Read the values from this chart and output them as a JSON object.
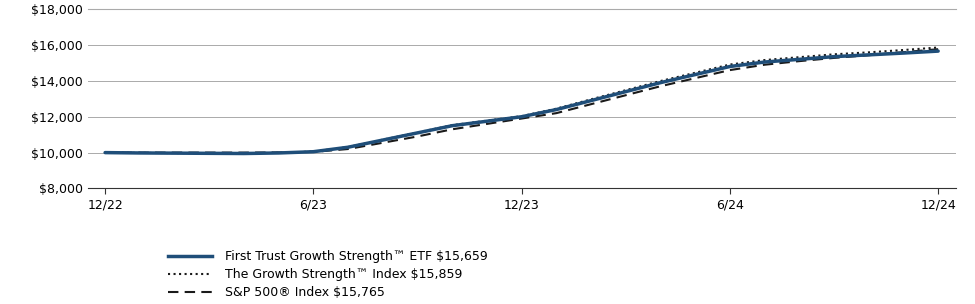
{
  "x_labels": [
    "12/22",
    "6/23",
    "12/23",
    "6/24",
    "12/24"
  ],
  "x_positions": [
    0,
    6,
    12,
    18,
    24
  ],
  "ylim": [
    8000,
    18000
  ],
  "yticks": [
    8000,
    10000,
    12000,
    14000,
    16000,
    18000
  ],
  "etf_label": "First Trust Growth Strength™ ETF $15,659",
  "index_label": "The Growth Strength™ Index $15,859",
  "sp500_label": "S&P 500® Index $15,765",
  "etf_color": "#1f4e79",
  "index_color": "#1a1a1a",
  "sp500_color": "#1a1a1a",
  "background_color": "#ffffff",
  "etf_data_x": [
    0,
    1,
    2,
    3,
    4,
    5,
    6,
    7,
    8,
    9,
    10,
    11,
    12,
    13,
    14,
    15,
    16,
    17,
    18,
    19,
    20,
    21,
    22,
    23,
    24
  ],
  "etf_data_y": [
    10000,
    9980,
    9970,
    9960,
    9950,
    9980,
    10050,
    10300,
    10700,
    11100,
    11500,
    11750,
    12000,
    12400,
    12900,
    13400,
    13900,
    14350,
    14800,
    15050,
    15200,
    15350,
    15450,
    15550,
    15659
  ],
  "index_data_x": [
    0,
    1,
    2,
    3,
    4,
    5,
    6,
    7,
    8,
    9,
    10,
    11,
    12,
    13,
    14,
    15,
    16,
    17,
    18,
    19,
    20,
    21,
    22,
    23,
    24
  ],
  "index_data_y": [
    10000,
    9985,
    9975,
    9965,
    9960,
    9990,
    10060,
    10310,
    10720,
    11120,
    11530,
    11780,
    12030,
    12450,
    12970,
    13480,
    13990,
    14450,
    14910,
    15160,
    15320,
    15480,
    15590,
    15720,
    15859
  ],
  "sp500_data_x": [
    0,
    1,
    2,
    3,
    4,
    5,
    6,
    7,
    8,
    9,
    10,
    11,
    12,
    13,
    14,
    15,
    16,
    17,
    18,
    19,
    20,
    21,
    22,
    23,
    24
  ],
  "sp500_data_y": [
    10000,
    10000,
    10000,
    10000,
    10000,
    10010,
    10040,
    10200,
    10550,
    10900,
    11300,
    11600,
    11900,
    12200,
    12700,
    13200,
    13700,
    14150,
    14600,
    14900,
    15100,
    15280,
    15430,
    15600,
    15765
  ]
}
